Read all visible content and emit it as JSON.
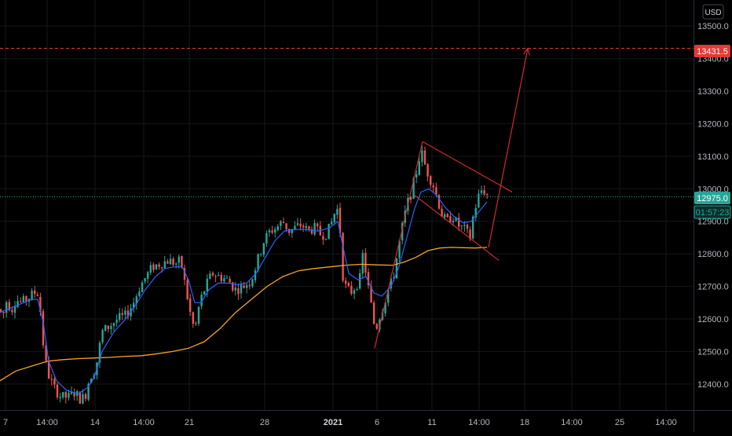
{
  "currency_button": "USD",
  "colors": {
    "background": "#000000",
    "grid": "#15171c",
    "up": "#26a69a",
    "down": "#ef5350",
    "ema_fast": "#2962ff",
    "ma_slow": "#f5a623",
    "drawing": "#d12a2a",
    "target_badge": "#e53935",
    "price_badge": "#26a69a"
  },
  "chart_data": {
    "type": "candlestick",
    "title": "",
    "xlabel": "",
    "ylabel": "",
    "ylim": [
      12320,
      13580
    ],
    "y_ticks": [
      12400,
      12500,
      12600,
      12700,
      12800,
      12900,
      13000,
      13100,
      13200,
      13300,
      13400,
      13500
    ],
    "y_tick_labels": [
      "12400.0",
      "12500.0",
      "12600.0",
      "12700.0",
      "12800.0",
      "12900.0",
      "13000.0",
      "13100.0",
      "13200.0",
      "13300.0",
      "13400.0",
      "13500.0"
    ],
    "x_ticks": [
      {
        "label": "7",
        "bold": false
      },
      {
        "label": "14:00",
        "bold": false
      },
      {
        "label": "14",
        "bold": false
      },
      {
        "label": "14:00",
        "bold": false
      },
      {
        "label": "21",
        "bold": false
      },
      {
        "label": "28",
        "bold": false
      },
      {
        "label": "2021",
        "bold": true
      },
      {
        "label": "6",
        "bold": false
      },
      {
        "label": "11",
        "bold": false
      },
      {
        "label": "14:00",
        "bold": false
      },
      {
        "label": "18",
        "bold": false
      },
      {
        "label": "14:00",
        "bold": false
      },
      {
        "label": "25",
        "bold": false
      },
      {
        "label": "14:00",
        "bold": false
      }
    ],
    "candle_path": [
      [
        0,
        12630
      ],
      [
        3,
        12600
      ],
      [
        8,
        12655
      ],
      [
        15,
        12630
      ],
      [
        20,
        12660
      ],
      [
        28,
        12650
      ],
      [
        36,
        12665
      ],
      [
        44,
        12680
      ],
      [
        50,
        12680
      ],
      [
        52,
        12600
      ],
      [
        56,
        12500
      ],
      [
        60,
        12440
      ],
      [
        68,
        12390
      ],
      [
        78,
        12360
      ],
      [
        88,
        12360
      ],
      [
        95,
        12375
      ],
      [
        102,
        12355
      ],
      [
        108,
        12360
      ],
      [
        114,
        12420
      ],
      [
        122,
        12450
      ],
      [
        130,
        12560
      ],
      [
        140,
        12580
      ],
      [
        150,
        12600
      ],
      [
        160,
        12610
      ],
      [
        170,
        12650
      ],
      [
        178,
        12700
      ],
      [
        186,
        12730
      ],
      [
        194,
        12760
      ],
      [
        204,
        12770
      ],
      [
        214,
        12780
      ],
      [
        224,
        12770
      ],
      [
        230,
        12780
      ],
      [
        236,
        12700
      ],
      [
        242,
        12620
      ],
      [
        248,
        12560
      ],
      [
        254,
        12650
      ],
      [
        262,
        12700
      ],
      [
        270,
        12740
      ],
      [
        280,
        12730
      ],
      [
        290,
        12720
      ],
      [
        300,
        12690
      ],
      [
        310,
        12700
      ],
      [
        320,
        12720
      ],
      [
        328,
        12780
      ],
      [
        336,
        12840
      ],
      [
        344,
        12870
      ],
      [
        352,
        12880
      ],
      [
        360,
        12900
      ],
      [
        368,
        12870
      ],
      [
        376,
        12880
      ],
      [
        384,
        12890
      ],
      [
        392,
        12870
      ],
      [
        400,
        12880
      ],
      [
        408,
        12860
      ],
      [
        414,
        12860
      ],
      [
        420,
        12880
      ],
      [
        428,
        12940
      ],
      [
        432,
        12930
      ],
      [
        435,
        12750
      ],
      [
        440,
        12700
      ],
      [
        446,
        12680
      ],
      [
        452,
        12700
      ],
      [
        458,
        12720
      ],
      [
        462,
        12800
      ],
      [
        466,
        12740
      ],
      [
        472,
        12650
      ],
      [
        478,
        12560
      ],
      [
        482,
        12600
      ],
      [
        488,
        12640
      ],
      [
        494,
        12690
      ],
      [
        500,
        12720
      ],
      [
        506,
        12800
      ],
      [
        512,
        12880
      ],
      [
        518,
        12950
      ],
      [
        524,
        12990
      ],
      [
        530,
        13050
      ],
      [
        536,
        13120
      ],
      [
        540,
        13080
      ],
      [
        546,
        13040
      ],
      [
        552,
        13010
      ],
      [
        558,
        12960
      ],
      [
        564,
        12910
      ],
      [
        570,
        12900
      ],
      [
        576,
        12920
      ],
      [
        582,
        12890
      ],
      [
        588,
        12880
      ],
      [
        594,
        12870
      ],
      [
        598,
        12840
      ],
      [
        602,
        12910
      ],
      [
        608,
        12970
      ],
      [
        614,
        13000
      ],
      [
        618,
        12990
      ],
      [
        622,
        12975
      ]
    ],
    "ema_fast_path": [
      [
        0,
        12620
      ],
      [
        10,
        12630
      ],
      [
        20,
        12640
      ],
      [
        30,
        12650
      ],
      [
        40,
        12660
      ],
      [
        48,
        12660
      ],
      [
        55,
        12590
      ],
      [
        62,
        12470
      ],
      [
        72,
        12410
      ],
      [
        85,
        12380
      ],
      [
        100,
        12370
      ],
      [
        112,
        12390
      ],
      [
        120,
        12420
      ],
      [
        130,
        12500
      ],
      [
        145,
        12560
      ],
      [
        160,
        12600
      ],
      [
        172,
        12640
      ],
      [
        185,
        12690
      ],
      [
        198,
        12730
      ],
      [
        210,
        12755
      ],
      [
        222,
        12760
      ],
      [
        232,
        12760
      ],
      [
        240,
        12720
      ],
      [
        248,
        12650
      ],
      [
        256,
        12650
      ],
      [
        266,
        12690
      ],
      [
        278,
        12710
      ],
      [
        290,
        12710
      ],
      [
        302,
        12705
      ],
      [
        314,
        12710
      ],
      [
        326,
        12740
      ],
      [
        338,
        12790
      ],
      [
        350,
        12840
      ],
      [
        362,
        12870
      ],
      [
        376,
        12875
      ],
      [
        390,
        12875
      ],
      [
        405,
        12870
      ],
      [
        420,
        12880
      ],
      [
        430,
        12900
      ],
      [
        436,
        12830
      ],
      [
        444,
        12740
      ],
      [
        456,
        12720
      ],
      [
        466,
        12730
      ],
      [
        476,
        12680
      ],
      [
        486,
        12670
      ],
      [
        498,
        12700
      ],
      [
        508,
        12760
      ],
      [
        518,
        12850
      ],
      [
        528,
        12940
      ],
      [
        536,
        12990
      ],
      [
        546,
        13000
      ],
      [
        556,
        12980
      ],
      [
        566,
        12945
      ],
      [
        578,
        12915
      ],
      [
        590,
        12895
      ],
      [
        600,
        12900
      ],
      [
        610,
        12930
      ],
      [
        620,
        12960
      ]
    ],
    "ma_slow_path": [
      [
        0,
        12410
      ],
      [
        20,
        12440
      ],
      [
        40,
        12455
      ],
      [
        60,
        12470
      ],
      [
        80,
        12475
      ],
      [
        100,
        12478
      ],
      [
        120,
        12480
      ],
      [
        140,
        12482
      ],
      [
        160,
        12485
      ],
      [
        180,
        12487
      ],
      [
        200,
        12493
      ],
      [
        220,
        12500
      ],
      [
        240,
        12510
      ],
      [
        260,
        12530
      ],
      [
        280,
        12570
      ],
      [
        300,
        12620
      ],
      [
        320,
        12660
      ],
      [
        340,
        12700
      ],
      [
        360,
        12730
      ],
      [
        380,
        12748
      ],
      [
        400,
        12755
      ],
      [
        420,
        12760
      ],
      [
        440,
        12765
      ],
      [
        460,
        12768
      ],
      [
        480,
        12766
      ],
      [
        500,
        12765
      ],
      [
        515,
        12775
      ],
      [
        530,
        12790
      ],
      [
        545,
        12810
      ],
      [
        560,
        12818
      ],
      [
        575,
        12820
      ],
      [
        590,
        12819
      ],
      [
        605,
        12818
      ],
      [
        620,
        12820
      ]
    ],
    "annotations": {
      "rise_line": [
        [
          477,
          12510
        ],
        [
          538,
          13145
        ]
      ],
      "channel_top": [
        [
          538,
          13145
        ],
        [
          652,
          12990
        ]
      ],
      "channel_bottom": [
        [
          528,
          12980
        ],
        [
          635,
          12780
        ]
      ],
      "projection_arrow": [
        [
          622,
          12820
        ],
        [
          672,
          13431.5
        ]
      ],
      "target_price_line": 13431.5,
      "current_price_line": 12975.0
    },
    "price_labels": {
      "target": "13431.5",
      "current": "12975.0",
      "countdown": "01:57:23"
    }
  }
}
